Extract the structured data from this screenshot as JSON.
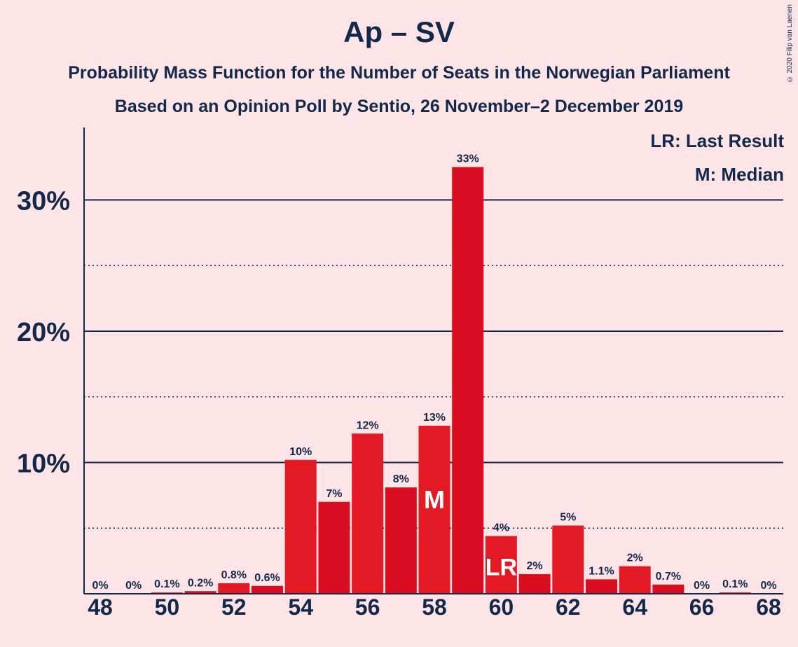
{
  "title": "Ap – SV",
  "subtitle1": "Probability Mass Function for the Number of Seats in the Norwegian Parliament",
  "subtitle2": "Based on an Opinion Poll by Sentio, 26 November–2 December 2019",
  "copyright": "© 2020 Filip van Laenen",
  "legend": {
    "lr": "LR: Last Result",
    "m": "M: Median"
  },
  "colors": {
    "background": "#fde4e6",
    "bar_main": "#e31a23",
    "bar_alt": "#d90c20",
    "axis": "#13294b",
    "label_white": "#ffffff"
  },
  "chart_data": {
    "type": "bar",
    "title": "Ap – SV",
    "xlabel": "",
    "ylabel": "",
    "ylim": [
      0,
      35
    ],
    "yticks": [
      10,
      20,
      30
    ],
    "ytick_labels": [
      "10%",
      "20%",
      "30%"
    ],
    "minor_gridlines": [
      5,
      15,
      25
    ],
    "categories": [
      48,
      49,
      50,
      51,
      52,
      53,
      54,
      55,
      56,
      57,
      58,
      59,
      60,
      61,
      62,
      63,
      64,
      65,
      66,
      67,
      68
    ],
    "xtick_labels": [
      "48",
      "50",
      "52",
      "54",
      "56",
      "58",
      "60",
      "62",
      "64",
      "66",
      "68"
    ],
    "values": [
      0,
      0,
      0.1,
      0.2,
      0.8,
      0.6,
      10.2,
      7.0,
      12.2,
      8.1,
      12.8,
      32.5,
      4.4,
      1.5,
      5.2,
      1.1,
      2.1,
      0.7,
      0,
      0.1,
      0
    ],
    "data_labels": [
      "0%",
      "0%",
      "0.1%",
      "0.2%",
      "0.8%",
      "0.6%",
      "10%",
      "7%",
      "12%",
      "8%",
      "13%",
      "33%",
      "4%",
      "2%",
      "5%",
      "1.1%",
      "2%",
      "0.7%",
      "0%",
      "0.1%",
      "0%"
    ],
    "median_seat": 58,
    "median_label": "M",
    "last_result_seat": 60,
    "last_result_label": "LR"
  }
}
